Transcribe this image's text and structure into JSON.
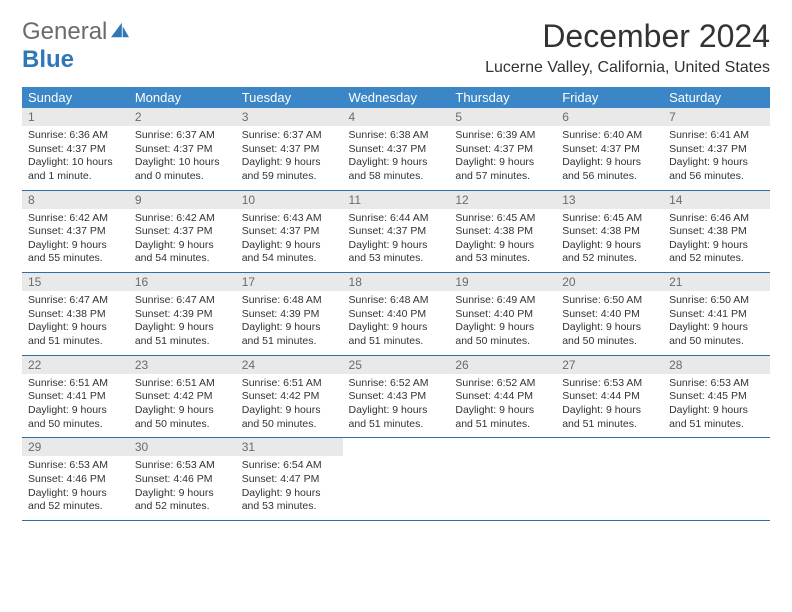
{
  "logo": {
    "general": "General",
    "blue": "Blue"
  },
  "title": "December 2024",
  "location": "Lucerne Valley, California, United States",
  "colors": {
    "header_bg": "#3b86c6",
    "header_fg": "#ffffff",
    "daynum_bg": "#e9e9e9",
    "daynum_fg": "#6b6b6b",
    "rule": "#2f6fa6",
    "text": "#333333",
    "logo_gray": "#6b6b6b",
    "logo_blue": "#2f77b8"
  },
  "week_headers": [
    "Sunday",
    "Monday",
    "Tuesday",
    "Wednesday",
    "Thursday",
    "Friday",
    "Saturday"
  ],
  "weeks": [
    [
      {
        "n": "1",
        "sr": "Sunrise: 6:36 AM",
        "ss": "Sunset: 4:37 PM",
        "d1": "Daylight: 10 hours",
        "d2": "and 1 minute."
      },
      {
        "n": "2",
        "sr": "Sunrise: 6:37 AM",
        "ss": "Sunset: 4:37 PM",
        "d1": "Daylight: 10 hours",
        "d2": "and 0 minutes."
      },
      {
        "n": "3",
        "sr": "Sunrise: 6:37 AM",
        "ss": "Sunset: 4:37 PM",
        "d1": "Daylight: 9 hours",
        "d2": "and 59 minutes."
      },
      {
        "n": "4",
        "sr": "Sunrise: 6:38 AM",
        "ss": "Sunset: 4:37 PM",
        "d1": "Daylight: 9 hours",
        "d2": "and 58 minutes."
      },
      {
        "n": "5",
        "sr": "Sunrise: 6:39 AM",
        "ss": "Sunset: 4:37 PM",
        "d1": "Daylight: 9 hours",
        "d2": "and 57 minutes."
      },
      {
        "n": "6",
        "sr": "Sunrise: 6:40 AM",
        "ss": "Sunset: 4:37 PM",
        "d1": "Daylight: 9 hours",
        "d2": "and 56 minutes."
      },
      {
        "n": "7",
        "sr": "Sunrise: 6:41 AM",
        "ss": "Sunset: 4:37 PM",
        "d1": "Daylight: 9 hours",
        "d2": "and 56 minutes."
      }
    ],
    [
      {
        "n": "8",
        "sr": "Sunrise: 6:42 AM",
        "ss": "Sunset: 4:37 PM",
        "d1": "Daylight: 9 hours",
        "d2": "and 55 minutes."
      },
      {
        "n": "9",
        "sr": "Sunrise: 6:42 AM",
        "ss": "Sunset: 4:37 PM",
        "d1": "Daylight: 9 hours",
        "d2": "and 54 minutes."
      },
      {
        "n": "10",
        "sr": "Sunrise: 6:43 AM",
        "ss": "Sunset: 4:37 PM",
        "d1": "Daylight: 9 hours",
        "d2": "and 54 minutes."
      },
      {
        "n": "11",
        "sr": "Sunrise: 6:44 AM",
        "ss": "Sunset: 4:37 PM",
        "d1": "Daylight: 9 hours",
        "d2": "and 53 minutes."
      },
      {
        "n": "12",
        "sr": "Sunrise: 6:45 AM",
        "ss": "Sunset: 4:38 PM",
        "d1": "Daylight: 9 hours",
        "d2": "and 53 minutes."
      },
      {
        "n": "13",
        "sr": "Sunrise: 6:45 AM",
        "ss": "Sunset: 4:38 PM",
        "d1": "Daylight: 9 hours",
        "d2": "and 52 minutes."
      },
      {
        "n": "14",
        "sr": "Sunrise: 6:46 AM",
        "ss": "Sunset: 4:38 PM",
        "d1": "Daylight: 9 hours",
        "d2": "and 52 minutes."
      }
    ],
    [
      {
        "n": "15",
        "sr": "Sunrise: 6:47 AM",
        "ss": "Sunset: 4:38 PM",
        "d1": "Daylight: 9 hours",
        "d2": "and 51 minutes."
      },
      {
        "n": "16",
        "sr": "Sunrise: 6:47 AM",
        "ss": "Sunset: 4:39 PM",
        "d1": "Daylight: 9 hours",
        "d2": "and 51 minutes."
      },
      {
        "n": "17",
        "sr": "Sunrise: 6:48 AM",
        "ss": "Sunset: 4:39 PM",
        "d1": "Daylight: 9 hours",
        "d2": "and 51 minutes."
      },
      {
        "n": "18",
        "sr": "Sunrise: 6:48 AM",
        "ss": "Sunset: 4:40 PM",
        "d1": "Daylight: 9 hours",
        "d2": "and 51 minutes."
      },
      {
        "n": "19",
        "sr": "Sunrise: 6:49 AM",
        "ss": "Sunset: 4:40 PM",
        "d1": "Daylight: 9 hours",
        "d2": "and 50 minutes."
      },
      {
        "n": "20",
        "sr": "Sunrise: 6:50 AM",
        "ss": "Sunset: 4:40 PM",
        "d1": "Daylight: 9 hours",
        "d2": "and 50 minutes."
      },
      {
        "n": "21",
        "sr": "Sunrise: 6:50 AM",
        "ss": "Sunset: 4:41 PM",
        "d1": "Daylight: 9 hours",
        "d2": "and 50 minutes."
      }
    ],
    [
      {
        "n": "22",
        "sr": "Sunrise: 6:51 AM",
        "ss": "Sunset: 4:41 PM",
        "d1": "Daylight: 9 hours",
        "d2": "and 50 minutes."
      },
      {
        "n": "23",
        "sr": "Sunrise: 6:51 AM",
        "ss": "Sunset: 4:42 PM",
        "d1": "Daylight: 9 hours",
        "d2": "and 50 minutes."
      },
      {
        "n": "24",
        "sr": "Sunrise: 6:51 AM",
        "ss": "Sunset: 4:42 PM",
        "d1": "Daylight: 9 hours",
        "d2": "and 50 minutes."
      },
      {
        "n": "25",
        "sr": "Sunrise: 6:52 AM",
        "ss": "Sunset: 4:43 PM",
        "d1": "Daylight: 9 hours",
        "d2": "and 51 minutes."
      },
      {
        "n": "26",
        "sr": "Sunrise: 6:52 AM",
        "ss": "Sunset: 4:44 PM",
        "d1": "Daylight: 9 hours",
        "d2": "and 51 minutes."
      },
      {
        "n": "27",
        "sr": "Sunrise: 6:53 AM",
        "ss": "Sunset: 4:44 PM",
        "d1": "Daylight: 9 hours",
        "d2": "and 51 minutes."
      },
      {
        "n": "28",
        "sr": "Sunrise: 6:53 AM",
        "ss": "Sunset: 4:45 PM",
        "d1": "Daylight: 9 hours",
        "d2": "and 51 minutes."
      }
    ],
    [
      {
        "n": "29",
        "sr": "Sunrise: 6:53 AM",
        "ss": "Sunset: 4:46 PM",
        "d1": "Daylight: 9 hours",
        "d2": "and 52 minutes."
      },
      {
        "n": "30",
        "sr": "Sunrise: 6:53 AM",
        "ss": "Sunset: 4:46 PM",
        "d1": "Daylight: 9 hours",
        "d2": "and 52 minutes."
      },
      {
        "n": "31",
        "sr": "Sunrise: 6:54 AM",
        "ss": "Sunset: 4:47 PM",
        "d1": "Daylight: 9 hours",
        "d2": "and 53 minutes."
      },
      null,
      null,
      null,
      null
    ]
  ]
}
